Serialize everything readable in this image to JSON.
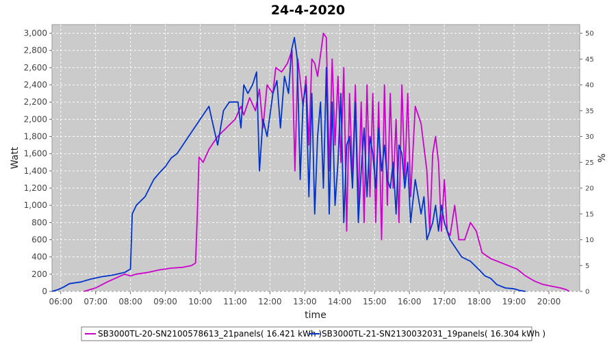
{
  "chart_data": {
    "type": "line",
    "title": "24-4-2020",
    "xlabel": "time",
    "ylabel": "Watt",
    "y2label": "%",
    "x_ticks": [
      "06:00",
      "07:00",
      "08:00",
      "09:00",
      "10:00",
      "11:00",
      "12:00",
      "13:00",
      "14:00",
      "15:00",
      "16:00",
      "17:00",
      "18:00",
      "19:00",
      "20:00"
    ],
    "xlim": [
      "05:45",
      "20:53"
    ],
    "ylim": [
      0,
      3100
    ],
    "y_ticks": [
      0,
      200,
      400,
      600,
      800,
      1000,
      1200,
      1400,
      1600,
      1800,
      2000,
      2200,
      2400,
      2600,
      2800,
      3000
    ],
    "y_tick_labels": [
      "0",
      "200",
      "400",
      "600",
      "800",
      "1,000",
      "1,200",
      "1,400",
      "1,600",
      "1,800",
      "2,000",
      "2,200",
      "2,400",
      "2,600",
      "2,800",
      "3,000"
    ],
    "y2lim": [
      0,
      51.67
    ],
    "y2_ticks": [
      0,
      5,
      10,
      15,
      20,
      25,
      30,
      35,
      40,
      45,
      50
    ],
    "grid": true,
    "legend_position": "bottom",
    "colors": {
      "plot_bg": "#cbcbcb",
      "grid": "#ffffff"
    },
    "series": [
      {
        "name": "SB3000TL-20-SN2100578613_21panels( 16.421 kWh )",
        "color": "#cc00cc",
        "points": [
          [
            "06:40",
            0
          ],
          [
            "07:00",
            40
          ],
          [
            "07:20",
            110
          ],
          [
            "07:40",
            170
          ],
          [
            "07:50",
            200
          ],
          [
            "08:00",
            180
          ],
          [
            "08:10",
            200
          ],
          [
            "08:30",
            220
          ],
          [
            "08:50",
            250
          ],
          [
            "09:10",
            270
          ],
          [
            "09:30",
            280
          ],
          [
            "09:45",
            300
          ],
          [
            "09:52",
            330
          ],
          [
            "09:55",
            900
          ],
          [
            "09:58",
            1560
          ],
          [
            "10:05",
            1500
          ],
          [
            "10:15",
            1650
          ],
          [
            "10:30",
            1800
          ],
          [
            "10:45",
            1900
          ],
          [
            "11:00",
            2000
          ],
          [
            "11:10",
            2150
          ],
          [
            "11:15",
            2050
          ],
          [
            "11:25",
            2250
          ],
          [
            "11:35",
            2100
          ],
          [
            "11:42",
            2350
          ],
          [
            "11:48",
            1900
          ],
          [
            "11:55",
            2400
          ],
          [
            "12:05",
            2300
          ],
          [
            "12:10",
            2600
          ],
          [
            "12:20",
            2550
          ],
          [
            "12:30",
            2650
          ],
          [
            "12:38",
            2800
          ],
          [
            "12:43",
            1400
          ],
          [
            "12:48",
            2700
          ],
          [
            "12:52",
            2450
          ],
          [
            "12:57",
            2150
          ],
          [
            "13:02",
            2500
          ],
          [
            "13:07",
            1700
          ],
          [
            "13:12",
            2700
          ],
          [
            "13:17",
            2650
          ],
          [
            "13:22",
            2500
          ],
          [
            "13:27",
            2750
          ],
          [
            "13:32",
            3000
          ],
          [
            "13:37",
            2950
          ],
          [
            "13:42",
            1400
          ],
          [
            "13:47",
            2700
          ],
          [
            "13:52",
            1700
          ],
          [
            "13:57",
            2500
          ],
          [
            "14:02",
            1500
          ],
          [
            "14:07",
            2600
          ],
          [
            "14:12",
            700
          ],
          [
            "14:17",
            2300
          ],
          [
            "14:22",
            1300
          ],
          [
            "14:27",
            2400
          ],
          [
            "14:32",
            1000
          ],
          [
            "14:37",
            2200
          ],
          [
            "14:42",
            800
          ],
          [
            "14:47",
            2400
          ],
          [
            "14:52",
            1100
          ],
          [
            "14:57",
            2300
          ],
          [
            "15:02",
            800
          ],
          [
            "15:07",
            2200
          ],
          [
            "15:12",
            600
          ],
          [
            "15:17",
            2400
          ],
          [
            "15:22",
            1000
          ],
          [
            "15:27",
            2300
          ],
          [
            "15:32",
            1200
          ],
          [
            "15:37",
            2000
          ],
          [
            "15:42",
            800
          ],
          [
            "15:47",
            2400
          ],
          [
            "15:52",
            1300
          ],
          [
            "15:57",
            2300
          ],
          [
            "16:02",
            1100
          ],
          [
            "16:10",
            2150
          ],
          [
            "16:20",
            1950
          ],
          [
            "16:30",
            1400
          ],
          [
            "16:35",
            700
          ],
          [
            "16:40",
            1600
          ],
          [
            "16:45",
            1800
          ],
          [
            "16:50",
            1500
          ],
          [
            "16:55",
            700
          ],
          [
            "17:00",
            1300
          ],
          [
            "17:05",
            700
          ],
          [
            "17:10",
            650
          ],
          [
            "17:18",
            1000
          ],
          [
            "17:25",
            600
          ],
          [
            "17:35",
            600
          ],
          [
            "17:45",
            800
          ],
          [
            "17:55",
            700
          ],
          [
            "18:05",
            450
          ],
          [
            "18:20",
            380
          ],
          [
            "18:35",
            340
          ],
          [
            "18:50",
            300
          ],
          [
            "19:05",
            260
          ],
          [
            "19:20",
            180
          ],
          [
            "19:35",
            120
          ],
          [
            "19:50",
            80
          ],
          [
            "20:05",
            60
          ],
          [
            "20:20",
            40
          ],
          [
            "20:30",
            20
          ],
          [
            "20:35",
            0
          ]
        ]
      },
      {
        "name": "SB3000TL-21-SN2130032031_19panels( 16.304 kWh )",
        "color": "#0033cc",
        "points": [
          [
            "05:45",
            0
          ],
          [
            "05:55",
            20
          ],
          [
            "06:05",
            50
          ],
          [
            "06:15",
            90
          ],
          [
            "06:35",
            110
          ],
          [
            "06:50",
            140
          ],
          [
            "07:10",
            170
          ],
          [
            "07:30",
            190
          ],
          [
            "07:50",
            220
          ],
          [
            "08:00",
            260
          ],
          [
            "08:03",
            900
          ],
          [
            "08:10",
            1000
          ],
          [
            "08:25",
            1100
          ],
          [
            "08:40",
            1300
          ],
          [
            "08:50",
            1380
          ],
          [
            "09:00",
            1450
          ],
          [
            "09:10",
            1550
          ],
          [
            "09:20",
            1600
          ],
          [
            "09:30",
            1700
          ],
          [
            "09:40",
            1800
          ],
          [
            "09:50",
            1900
          ],
          [
            "10:00",
            2000
          ],
          [
            "10:10",
            2100
          ],
          [
            "10:15",
            2150
          ],
          [
            "10:20",
            2000
          ],
          [
            "10:30",
            1700
          ],
          [
            "10:40",
            2100
          ],
          [
            "10:50",
            2200
          ],
          [
            "11:05",
            2200
          ],
          [
            "11:10",
            1900
          ],
          [
            "11:15",
            2400
          ],
          [
            "11:22",
            2300
          ],
          [
            "11:30",
            2400
          ],
          [
            "11:37",
            2550
          ],
          [
            "11:42",
            1400
          ],
          [
            "11:48",
            2000
          ],
          [
            "11:55",
            1800
          ],
          [
            "12:05",
            2300
          ],
          [
            "12:12",
            2450
          ],
          [
            "12:18",
            1900
          ],
          [
            "12:25",
            2500
          ],
          [
            "12:32",
            2300
          ],
          [
            "12:37",
            2800
          ],
          [
            "12:42",
            2950
          ],
          [
            "12:47",
            2700
          ],
          [
            "12:52",
            1300
          ],
          [
            "12:57",
            2200
          ],
          [
            "13:02",
            2400
          ],
          [
            "13:07",
            1100
          ],
          [
            "13:12",
            2300
          ],
          [
            "13:17",
            900
          ],
          [
            "13:22",
            1800
          ],
          [
            "13:27",
            2200
          ],
          [
            "13:32",
            1200
          ],
          [
            "13:37",
            2600
          ],
          [
            "13:42",
            900
          ],
          [
            "13:47",
            2200
          ],
          [
            "13:52",
            1000
          ],
          [
            "13:57",
            1500
          ],
          [
            "14:02",
            2300
          ],
          [
            "14:07",
            800
          ],
          [
            "14:12",
            1700
          ],
          [
            "14:17",
            1800
          ],
          [
            "14:22",
            1200
          ],
          [
            "14:27",
            2200
          ],
          [
            "14:32",
            800
          ],
          [
            "14:37",
            1400
          ],
          [
            "14:42",
            1900
          ],
          [
            "14:47",
            1100
          ],
          [
            "14:52",
            1800
          ],
          [
            "14:57",
            1600
          ],
          [
            "15:02",
            1200
          ],
          [
            "15:07",
            1900
          ],
          [
            "15:12",
            1400
          ],
          [
            "15:17",
            1700
          ],
          [
            "15:22",
            1300
          ],
          [
            "15:27",
            1200
          ],
          [
            "15:32",
            1500
          ],
          [
            "15:37",
            900
          ],
          [
            "15:42",
            1700
          ],
          [
            "15:47",
            1600
          ],
          [
            "15:52",
            1200
          ],
          [
            "15:57",
            1500
          ],
          [
            "16:02",
            800
          ],
          [
            "16:10",
            1300
          ],
          [
            "16:20",
            900
          ],
          [
            "16:25",
            1100
          ],
          [
            "16:30",
            600
          ],
          [
            "16:40",
            800
          ],
          [
            "16:45",
            1000
          ],
          [
            "16:50",
            700
          ],
          [
            "16:55",
            1000
          ],
          [
            "17:00",
            800
          ],
          [
            "17:10",
            600
          ],
          [
            "17:20",
            500
          ],
          [
            "17:30",
            400
          ],
          [
            "17:45",
            350
          ],
          [
            "18:00",
            250
          ],
          [
            "18:10",
            180
          ],
          [
            "18:20",
            150
          ],
          [
            "18:30",
            80
          ],
          [
            "18:45",
            40
          ],
          [
            "19:00",
            30
          ],
          [
            "19:10",
            10
          ],
          [
            "19:20",
            0
          ]
        ]
      }
    ]
  }
}
